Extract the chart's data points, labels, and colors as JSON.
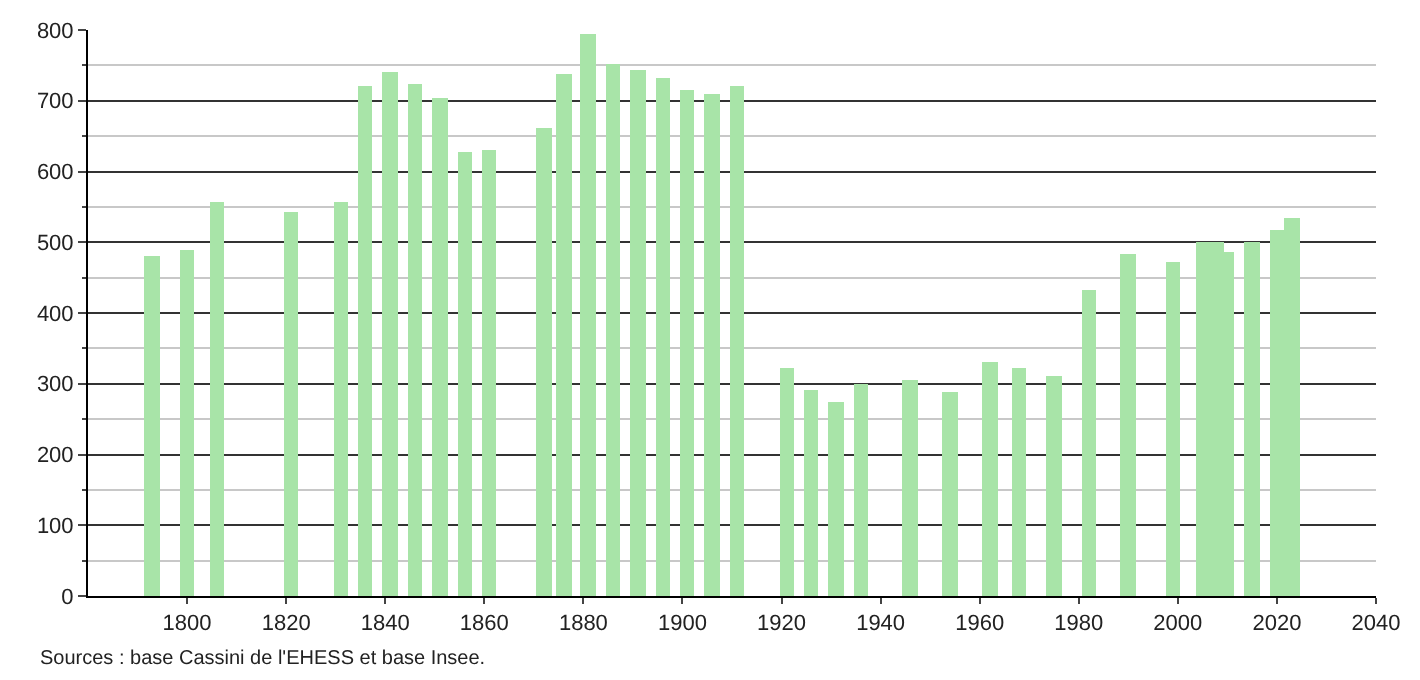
{
  "chart_data": {
    "type": "bar",
    "x": [
      1793,
      1800,
      1806,
      1821,
      1831,
      1836,
      1841,
      1846,
      1851,
      1856,
      1861,
      1872,
      1876,
      1881,
      1886,
      1891,
      1896,
      1901,
      1906,
      1911,
      1921,
      1926,
      1931,
      1936,
      1946,
      1954,
      1962,
      1968,
      1975,
      1982,
      1990,
      1999,
      2005,
      2008,
      2010,
      2015,
      2020,
      2023
    ],
    "values": [
      481,
      488,
      558,
      544,
      558,
      721,
      741,
      723,
      705,
      627,
      630,
      661,
      737,
      793,
      751,
      744,
      733,
      716,
      710,
      721,
      323,
      292,
      273,
      300,
      306,
      288,
      332,
      323,
      312,
      433,
      483,
      472,
      500,
      500,
      487,
      500,
      516,
      535
    ],
    "color": "#a8e4a8",
    "xlim": [
      1780,
      2040
    ],
    "xticks": [
      1800,
      1820,
      1840,
      1860,
      1880,
      1900,
      1920,
      1940,
      1960,
      1980,
      2000,
      2020,
      2040
    ],
    "ylim": [
      0,
      800
    ],
    "yticks": [
      0,
      100,
      200,
      300,
      400,
      500,
      600,
      700,
      800
    ],
    "grid": "y",
    "annotations": [
      "Sources : base Cassini de l'EHESS et base Insee."
    ]
  }
}
